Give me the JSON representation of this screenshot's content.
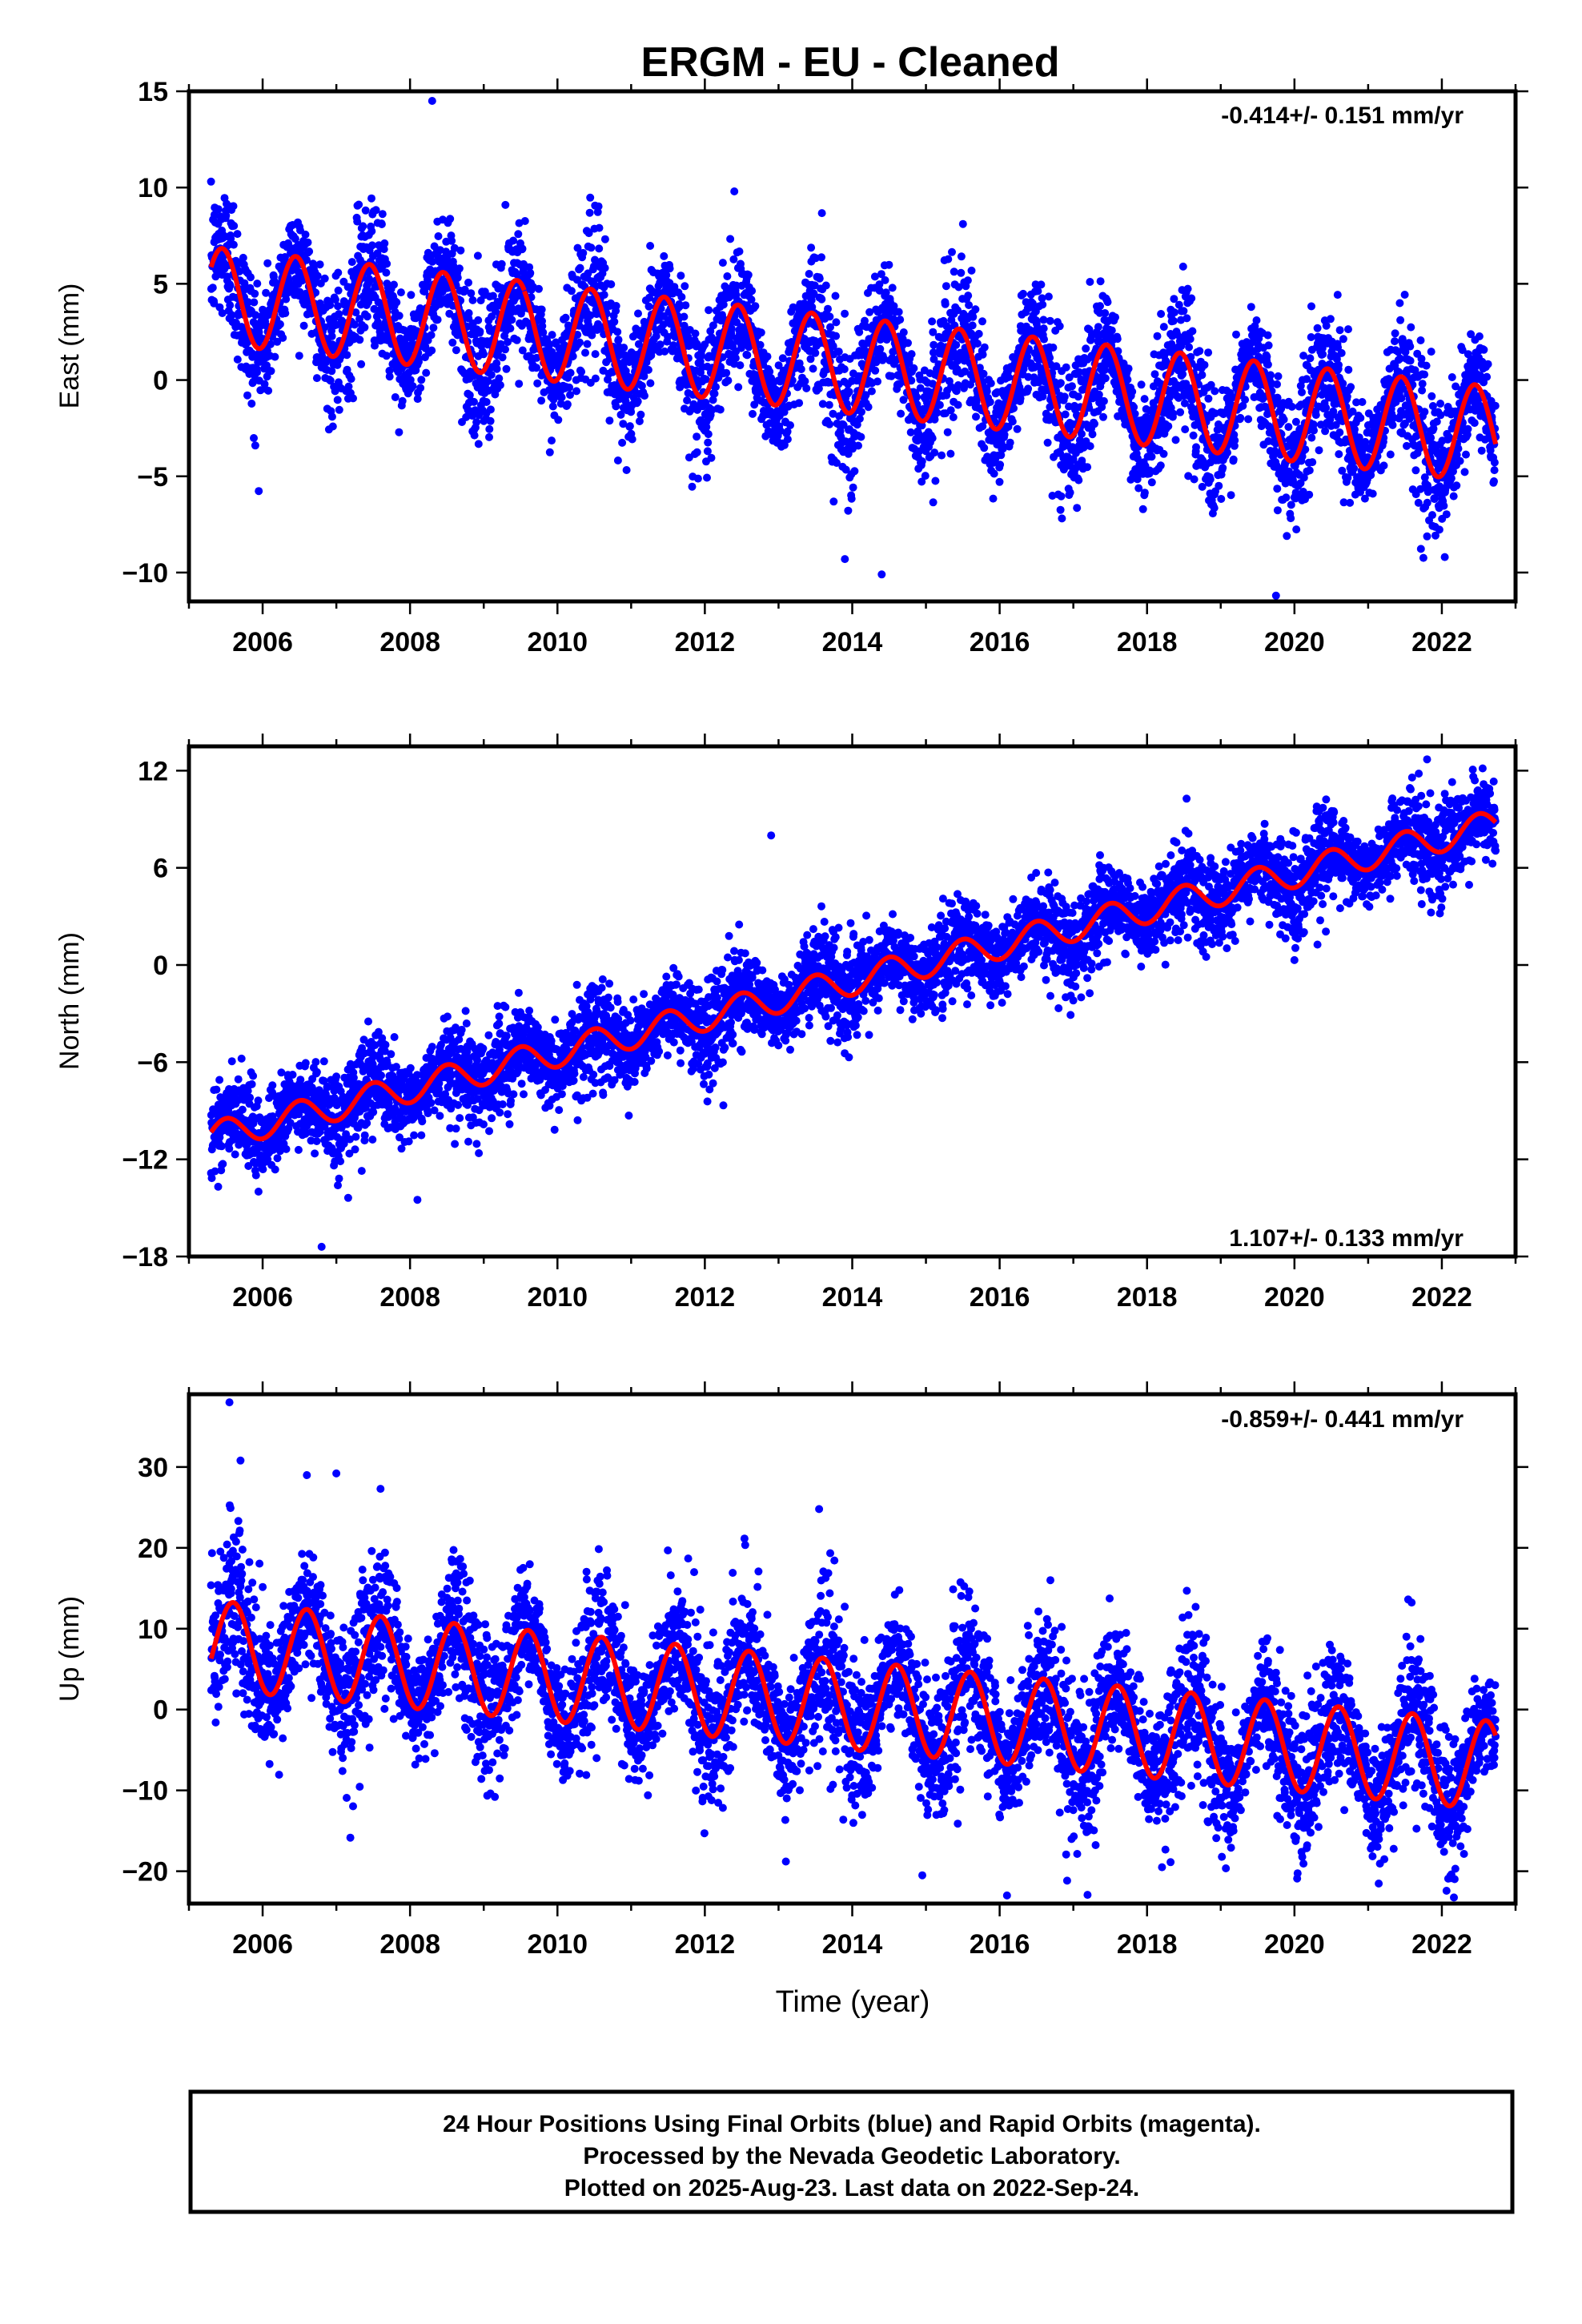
{
  "title": "ERGM  - EU - Cleaned",
  "colors": {
    "final_orbits": "#0000ff",
    "model": "#ff0000",
    "axes": "#000000"
  },
  "chart_data": [
    {
      "id": "east",
      "type": "scatter",
      "ylabel": "East (mm)",
      "xlabel": "",
      "xlim": [
        2005.0,
        2023.0
      ],
      "ylim": [
        -11.5,
        15
      ],
      "xticks": [
        2006,
        2008,
        2010,
        2012,
        2014,
        2016,
        2018,
        2020,
        2022
      ],
      "yticks": [
        -10,
        -5,
        0,
        5,
        10,
        15
      ],
      "rate": "-0.414+/- 0.151 mm/yr",
      "rate_position": "top-right",
      "data_start": 2005.3,
      "data_end": 2022.73,
      "model": {
        "segments": [
          {
            "start": 2005.3,
            "end": 2009.55,
            "offset_at_start": 4.4,
            "rate_mm_per_yr": -0.414
          },
          {
            "start": 2009.55,
            "end": 2022.73,
            "offset_at_start": 2.6,
            "rate_mm_per_yr": -0.414
          }
        ],
        "annual_amplitude": 2.5,
        "annual_peak": 0.45
      },
      "scatter": {
        "noise_sd": 1.6,
        "points_per_year": 300
      },
      "outliers": [
        [
          2012.4,
          9.8
        ],
        [
          2014.4,
          -10.1
        ],
        [
          2019.75,
          -11.2
        ],
        [
          2008.3,
          14.5
        ],
        [
          2013.9,
          -9.3
        ],
        [
          2005.9,
          -3.4
        ]
      ]
    },
    {
      "id": "north",
      "type": "scatter",
      "ylabel": "North (mm)",
      "xlabel": "",
      "xlim": [
        2005.0,
        2023.0
      ],
      "ylim": [
        -18,
        13.5
      ],
      "xticks": [
        2006,
        2008,
        2010,
        2012,
        2014,
        2016,
        2018,
        2020,
        2022
      ],
      "yticks": [
        -18,
        -12,
        -6,
        0,
        6,
        12
      ],
      "ytick_labels": [
        "−18",
        "−12",
        "−6",
        "0",
        "6",
        "12"
      ],
      "rate": "1.107+/- 0.133 mm/yr",
      "rate_position": "bottom-right",
      "data_start": 2005.3,
      "data_end": 2022.73,
      "model": {
        "segments": [
          {
            "start": 2005.3,
            "end": 2022.73,
            "offset_at_start": -10.6,
            "rate_mm_per_yr": 1.107
          }
        ],
        "annual_amplitude": 0.9,
        "annual_peak": 0.5
      },
      "scatter": {
        "noise_sd": 1.3,
        "points_per_year": 300
      },
      "outliers": [
        [
          2006.8,
          -17.4
        ],
        [
          2012.9,
          8.0
        ],
        [
          2021.8,
          12.7
        ],
        [
          2008.1,
          -14.5
        ],
        [
          2020.0,
          0.3
        ]
      ]
    },
    {
      "id": "up",
      "type": "scatter",
      "ylabel": "Up (mm)",
      "xlabel": "Time (year)",
      "xlim": [
        2005.0,
        2023.0
      ],
      "ylim": [
        -24,
        39
      ],
      "xticks": [
        2006,
        2008,
        2010,
        2012,
        2014,
        2016,
        2018,
        2020,
        2022
      ],
      "yticks": [
        -20,
        -10,
        0,
        10,
        20,
        30
      ],
      "ytick_labels": [
        "−20",
        "−10",
        "0",
        "10",
        "20",
        "30"
      ],
      "rate": "-0.859+/- 0.441 mm/yr",
      "rate_position": "top-right",
      "data_start": 2005.3,
      "data_end": 2022.73,
      "model": {
        "segments": [
          {
            "start": 2005.3,
            "end": 2022.73,
            "offset_at_start": 8.0,
            "rate_mm_per_yr": -0.859
          }
        ],
        "annual_amplitude": 5.5,
        "annual_peak": 0.6
      },
      "scatter": {
        "noise_sd": 4.2,
        "points_per_year": 300
      },
      "outliers": [
        [
          2005.55,
          38.0
        ],
        [
          2005.7,
          30.8
        ],
        [
          2006.6,
          29.0
        ],
        [
          2007.0,
          29.2
        ],
        [
          2007.6,
          27.3
        ],
        [
          2013.55,
          24.8
        ],
        [
          2016.1,
          -23.0
        ],
        [
          2013.1,
          -18.8
        ],
        [
          2014.95,
          -20.5
        ]
      ]
    }
  ],
  "footer": {
    "line1": "24 Hour Positions Using Final Orbits (blue) and Rapid Orbits (magenta).",
    "line2": "Processed by the Nevada Geodetic Laboratory.",
    "line3": "Plotted on 2025-Aug-23. Last data on 2022-Sep-24."
  }
}
